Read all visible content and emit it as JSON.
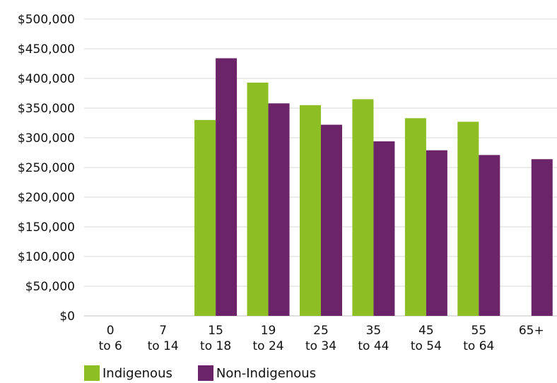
{
  "chart_data": {
    "type": "bar",
    "categories": [
      {
        "line1": "0",
        "line2": "to 6"
      },
      {
        "line1": "7",
        "line2": "to 14"
      },
      {
        "line1": "15",
        "line2": "to 18"
      },
      {
        "line1": "19",
        "line2": "to 24"
      },
      {
        "line1": "25",
        "line2": "to 34"
      },
      {
        "line1": "35",
        "line2": "to 44"
      },
      {
        "line1": "45",
        "line2": "to 54"
      },
      {
        "line1": "55",
        "line2": "to 64"
      },
      {
        "line1": "65+",
        "line2": ""
      }
    ],
    "series": [
      {
        "name": "Indigenous",
        "color": "#8DBE23",
        "values": [
          null,
          null,
          330000,
          393000,
          355000,
          365000,
          333000,
          327000,
          null
        ]
      },
      {
        "name": "Non-Indigenous",
        "color": "#6C2469",
        "values": [
          null,
          null,
          434000,
          358000,
          322000,
          294000,
          279000,
          271000,
          264000
        ]
      }
    ],
    "ylim": [
      0,
      500000
    ],
    "yticks": [
      "$0",
      "$50,000",
      "$100,000",
      "$150,000",
      "$200,000",
      "$250,000",
      "$300,000",
      "$350,000",
      "$400,000",
      "$450,000",
      "$500,000"
    ],
    "ytick_values": [
      0,
      50000,
      100000,
      150000,
      200000,
      250000,
      300000,
      350000,
      400000,
      450000,
      500000
    ],
    "grid": true,
    "legend_position": "bottom-left"
  }
}
